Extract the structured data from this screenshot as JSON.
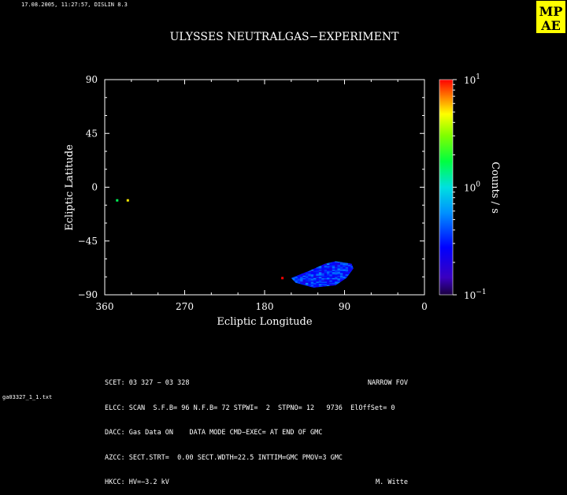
{
  "header": {
    "timestamp": "17.08.2005, 11:27:57, DISLIN 8.3",
    "logo_text": [
      "MP",
      "AE"
    ]
  },
  "chart_data": {
    "type": "heatmap",
    "title": "ULYSSES NEUTRALGAS−EXPERIMENT",
    "xlabel": "Ecliptic Longitude",
    "ylabel": "Ecliptic Latitude",
    "xlim": [
      360,
      0
    ],
    "ylim": [
      -90,
      90
    ],
    "xticks": [
      "360",
      "270",
      "180",
      "90",
      "0"
    ],
    "yticks": [
      "90",
      "45",
      "0",
      "−45",
      "−90"
    ],
    "colorbar": {
      "label": "Counts / s",
      "scale": "log",
      "range": [
        0.1,
        10
      ],
      "ticks": [
        {
          "base": "10",
          "exp": "1",
          "value": 10
        },
        {
          "base": "10",
          "exp": "0",
          "value": 1
        },
        {
          "base": "10",
          "exp": "−1",
          "value": 0.1
        }
      ]
    },
    "points": [
      {
        "lon": 346,
        "lat": -11,
        "counts": 1.6
      },
      {
        "lon": 334,
        "lat": -11,
        "counts": 5.0
      },
      {
        "lon": 160,
        "lat": -76,
        "counts": 10
      }
    ],
    "region": {
      "lon_range": [
        80,
        150
      ],
      "lat_range": [
        -84,
        -62
      ],
      "outline": [
        [
          150,
          -76
        ],
        [
          130,
          -70
        ],
        [
          112,
          -64
        ],
        [
          100,
          -62
        ],
        [
          82,
          -64
        ],
        [
          80,
          -68
        ],
        [
          88,
          -76
        ],
        [
          100,
          -82
        ],
        [
          125,
          -84
        ],
        [
          145,
          -80
        ]
      ],
      "counts_range": [
        0.2,
        0.6
      ]
    }
  },
  "footer": {
    "lines": [
      {
        "left": "SCET: 03 327 − 03 328",
        "right": "NARROW FOV"
      },
      {
        "left": "ELCC: SCAN  S.F.B= 96 N.F.B= 72 STPWI=  2  STPNO= 12   9736  ElOffSet= 0",
        "right": ""
      },
      {
        "left": "DACC: Gas Data ON    DATA MODE CMD−EXEC= AT END OF GMC",
        "right": ""
      },
      {
        "left": "AZCC: SECT.STRT=  0.00 SECT.WDTH=22.5 INTTIM=GMC PMOV=3 GMC",
        "right": ""
      },
      {
        "left": "HKCC: HV=−3.2 kV",
        "right": "M. Witte"
      }
    ],
    "filename": "ga03327_1_1.txt"
  }
}
